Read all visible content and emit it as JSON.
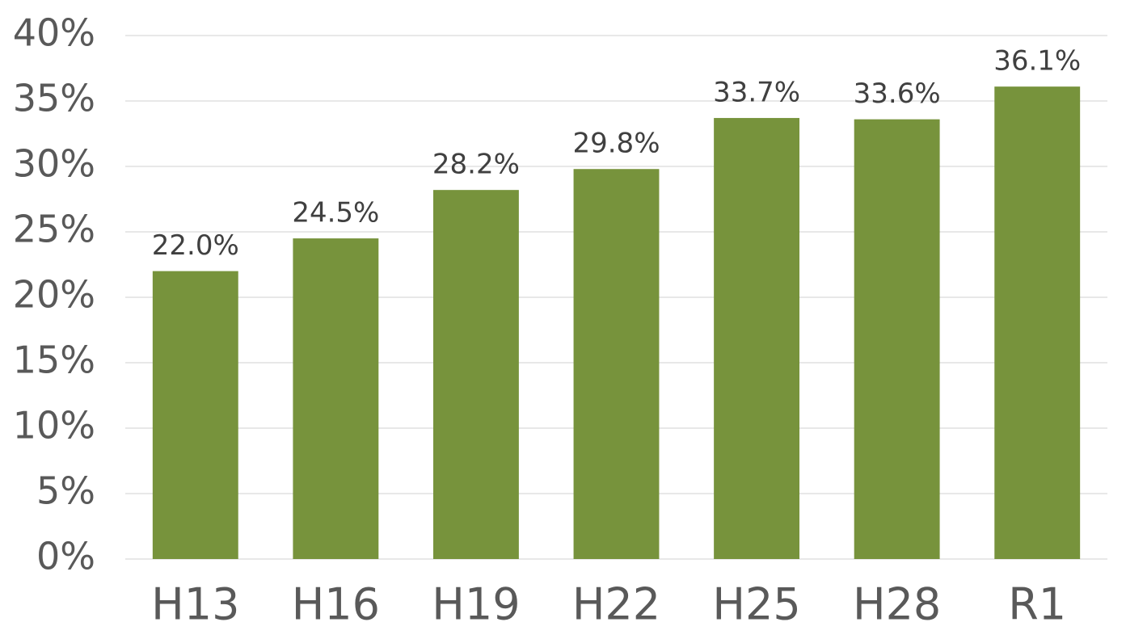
{
  "chart_data": {
    "type": "bar",
    "categories": [
      "H13",
      "H16",
      "H19",
      "H22",
      "H25",
      "H28",
      "R1"
    ],
    "values": [
      22.0,
      24.5,
      28.2,
      29.8,
      33.7,
      33.6,
      36.1
    ],
    "value_labels": [
      "22.0%",
      "24.5%",
      "28.2%",
      "29.8%",
      "33.7%",
      "33.6%",
      "36.1%"
    ],
    "color": "#77933c",
    "ylim": [
      0,
      40
    ],
    "yticks": [
      {
        "value": 0,
        "label": "0%"
      },
      {
        "value": 5,
        "label": "5%"
      },
      {
        "value": 10,
        "label": "10%"
      },
      {
        "value": 15,
        "label": "15%"
      },
      {
        "value": 20,
        "label": "20%"
      },
      {
        "value": 25,
        "label": "25%"
      },
      {
        "value": 30,
        "label": "30%"
      },
      {
        "value": 35,
        "label": "35%"
      },
      {
        "value": 40,
        "label": "40%"
      }
    ],
    "grid": true
  }
}
